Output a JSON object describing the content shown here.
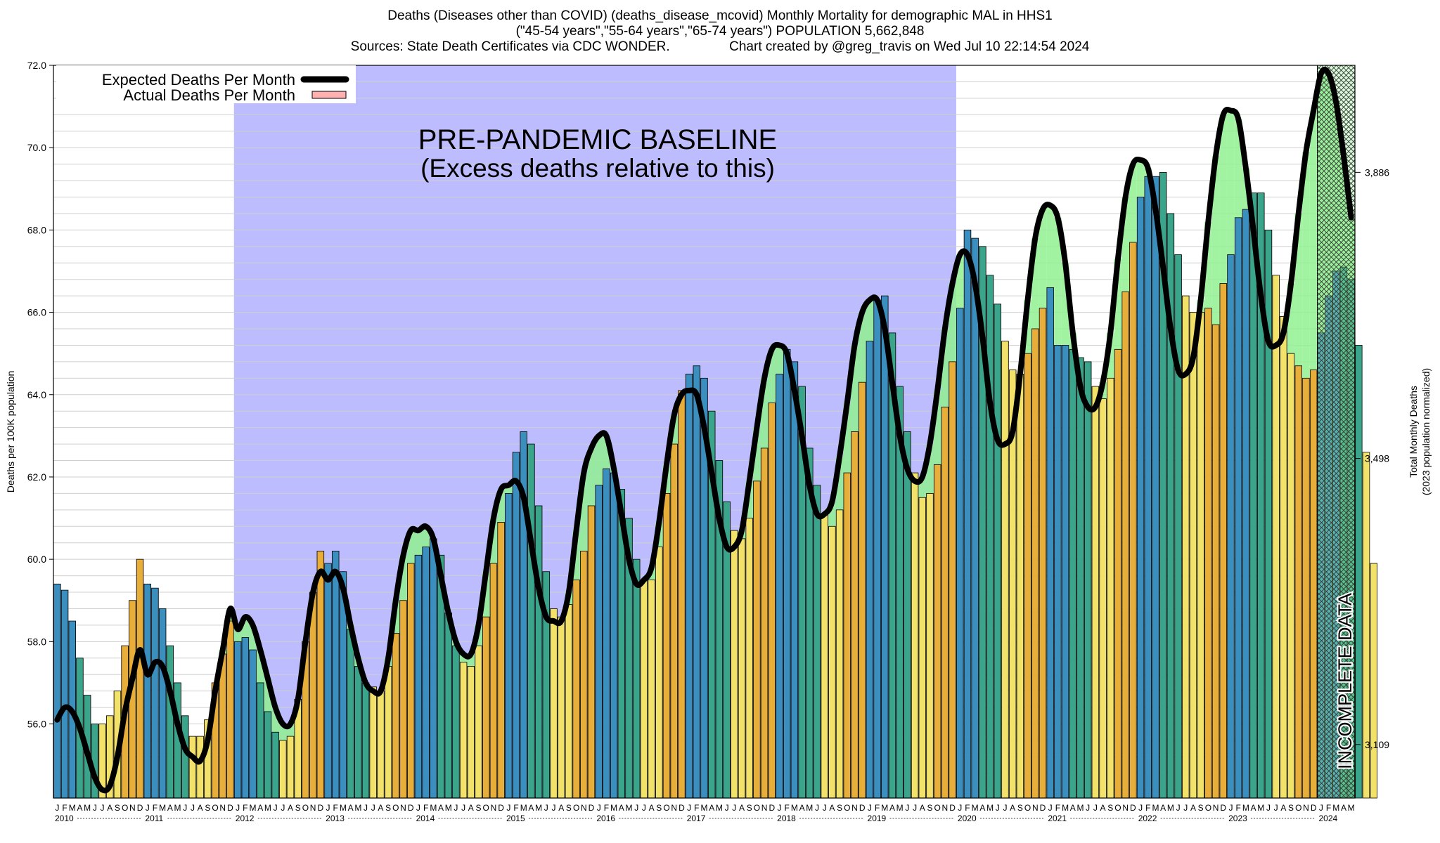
{
  "titles": {
    "line1": "Deaths (Diseases other than COVID) (deaths_disease_mcovid) Monthly Mortality for demographic MAL in HHS1",
    "line2": "(\"45-54 years\",\"55-64 years\",\"65-74 years\") POPULATION 5,662,848",
    "line3": "Sources: State Death Certificates via CDC WONDER.                Chart created by @greg_travis on Wed Jul 10 22:14:54 2024"
  },
  "legend": {
    "expected": "Expected Deaths Per Month",
    "actual": "Actual Deaths Per Month"
  },
  "annotations": {
    "baseline_line1": "PRE-PANDEMIC BASELINE",
    "baseline_line2": "(Excess deaths relative to this)",
    "incomplete": "INCOMPLETE DATA"
  },
  "colors": {
    "baseline_region": "#bcbcff",
    "expected_line": "#000000",
    "actual_fill": "#ffb0b0",
    "excess_fill": "#d06a6a",
    "deficit_fill": "#90f090",
    "bar_winter": "#3b8fbf",
    "bar_spring": "#3aa58a",
    "bar_summer": "#f2e26a",
    "bar_fall": "#e8ae3a"
  },
  "chart_data": {
    "type": "bar",
    "title": "Deaths (Diseases other than COVID) (deaths_disease_mcovid) Monthly Mortality for demographic MAL in HHS1",
    "ylabel": "Deaths per 100K population",
    "y2label_line1": "Total Monthly Deaths",
    "y2label_line2": "(2023 population normalized)",
    "ylim": [
      54.2,
      72.0
    ],
    "yticks": [
      56.0,
      58.0,
      60.0,
      62.0,
      64.0,
      66.0,
      68.0,
      70.0,
      72.0
    ],
    "y2ticks": [
      {
        "label": "3,109",
        "at": 55.5
      },
      {
        "label": "3,498",
        "at": 62.45
      },
      {
        "label": "3,886",
        "at": 69.4
      }
    ],
    "month_letters": [
      "J",
      "F",
      "M",
      "A",
      "M",
      "J",
      "J",
      "A",
      "S",
      "O",
      "N",
      "D"
    ],
    "years": [
      "2010",
      "2011",
      "2012",
      "2013",
      "2014",
      "2015",
      "2016",
      "2017",
      "2018",
      "2019",
      "2020",
      "2021",
      "2022",
      "2023",
      "2024"
    ],
    "start": "2010-01",
    "baseline_region": {
      "from": "2012-01",
      "to": "2019-12"
    },
    "incomplete_region": {
      "from": "2024-01",
      "to": "2024-05"
    },
    "series": [
      {
        "name": "Actual Deaths Per Month",
        "values": [
          59.4,
          59.25,
          58.5,
          57.6,
          56.7,
          56.0,
          56.0,
          56.2,
          56.8,
          57.9,
          59.0,
          60.0,
          59.4,
          59.3,
          58.8,
          57.9,
          57.0,
          56.2,
          55.7,
          55.7,
          56.1,
          57.0,
          57.7,
          58.5,
          58.0,
          58.1,
          57.8,
          57.0,
          56.3,
          55.8,
          55.6,
          55.7,
          56.6,
          58.0,
          59.2,
          60.2,
          59.9,
          60.2,
          59.7,
          58.3,
          57.4,
          57.0,
          56.9,
          56.8,
          57.4,
          58.2,
          59.0,
          59.9,
          60.1,
          60.3,
          60.5,
          60.1,
          58.7,
          57.9,
          57.5,
          57.4,
          57.9,
          58.6,
          59.9,
          60.9,
          61.6,
          62.6,
          63.1,
          62.8,
          61.3,
          59.7,
          58.8,
          58.6,
          58.9,
          59.5,
          60.2,
          61.3,
          61.8,
          62.2,
          62.1,
          61.7,
          61.0,
          60.0,
          59.5,
          59.5,
          60.3,
          61.6,
          62.8,
          64.1,
          64.5,
          64.7,
          64.4,
          63.6,
          62.4,
          61.4,
          60.7,
          60.5,
          61.0,
          61.9,
          62.7,
          63.8,
          64.5,
          65.1,
          64.8,
          64.2,
          62.7,
          61.8,
          61.1,
          60.8,
          61.2,
          62.1,
          63.1,
          64.3,
          65.3,
          66.3,
          66.4,
          65.5,
          64.2,
          63.1,
          62.1,
          61.5,
          61.6,
          62.3,
          63.7,
          64.8,
          66.1,
          68.0,
          67.8,
          67.6,
          66.9,
          66.2,
          65.3,
          64.6,
          64.5,
          65.0,
          65.6,
          66.1,
          66.6,
          65.2,
          65.2,
          65.1,
          64.9,
          64.8,
          64.2,
          63.9,
          64.4,
          65.1,
          66.5,
          67.7,
          68.8,
          69.3,
          69.3,
          69.4,
          68.4,
          67.4,
          66.4,
          66.0,
          66.0,
          66.1,
          65.7,
          66.7,
          67.4,
          68.3,
          68.5,
          68.9,
          68.9,
          68.0,
          66.9,
          65.9,
          65.0,
          64.7,
          64.4,
          64.6,
          65.5,
          66.4,
          67.0,
          67.1,
          66.8,
          65.2,
          62.6,
          59.9
        ]
      },
      {
        "name": "Expected Deaths Per Month",
        "values": [
          56.1,
          56.4,
          56.3,
          55.9,
          55.3,
          54.7,
          54.4,
          54.5,
          55.2,
          56.3,
          57.1,
          57.8,
          57.2,
          57.5,
          57.4,
          56.8,
          56.0,
          55.4,
          55.2,
          55.1,
          55.6,
          56.8,
          57.8,
          58.8,
          58.3,
          58.6,
          58.4,
          57.8,
          57.1,
          56.4,
          56.0,
          56.0,
          56.6,
          58.0,
          59.2,
          59.7,
          59.5,
          59.7,
          59.3,
          58.4,
          57.6,
          57.0,
          56.8,
          56.8,
          57.6,
          59.0,
          60.1,
          60.7,
          60.7,
          60.8,
          60.5,
          59.6,
          58.7,
          58.0,
          57.7,
          57.7,
          58.4,
          59.7,
          61.0,
          61.7,
          61.8,
          61.9,
          61.5,
          60.4,
          59.3,
          58.6,
          58.5,
          58.5,
          59.2,
          60.7,
          62.1,
          62.7,
          63.0,
          63.0,
          62.2,
          61.1,
          60.0,
          59.4,
          59.5,
          59.8,
          60.9,
          62.3,
          63.5,
          64.0,
          64.1,
          64.0,
          63.2,
          62.1,
          61.0,
          60.3,
          60.3,
          60.7,
          61.9,
          63.2,
          64.4,
          65.1,
          65.2,
          65.0,
          64.1,
          63.0,
          61.8,
          61.1,
          61.1,
          61.4,
          62.5,
          63.8,
          65.2,
          66.0,
          66.3,
          66.3,
          65.6,
          64.3,
          63.0,
          62.2,
          61.9,
          62.0,
          62.8,
          64.1,
          65.6,
          66.7,
          67.4,
          67.4,
          66.7,
          65.4,
          63.8,
          62.9,
          62.8,
          63.1,
          64.5,
          66.3,
          67.8,
          68.5,
          68.6,
          68.3,
          67.2,
          65.5,
          64.2,
          63.7,
          63.7,
          64.3,
          65.5,
          67.3,
          68.8,
          69.6,
          69.7,
          69.5,
          68.5,
          67.1,
          65.6,
          64.6,
          64.5,
          64.9,
          66.3,
          68.2,
          69.8,
          70.8,
          70.9,
          70.7,
          69.5,
          68.0,
          66.4,
          65.3,
          65.2,
          65.5,
          66.7,
          68.4,
          69.9,
          70.9,
          71.8,
          71.8,
          71.1,
          69.8,
          68.3
        ]
      }
    ]
  }
}
